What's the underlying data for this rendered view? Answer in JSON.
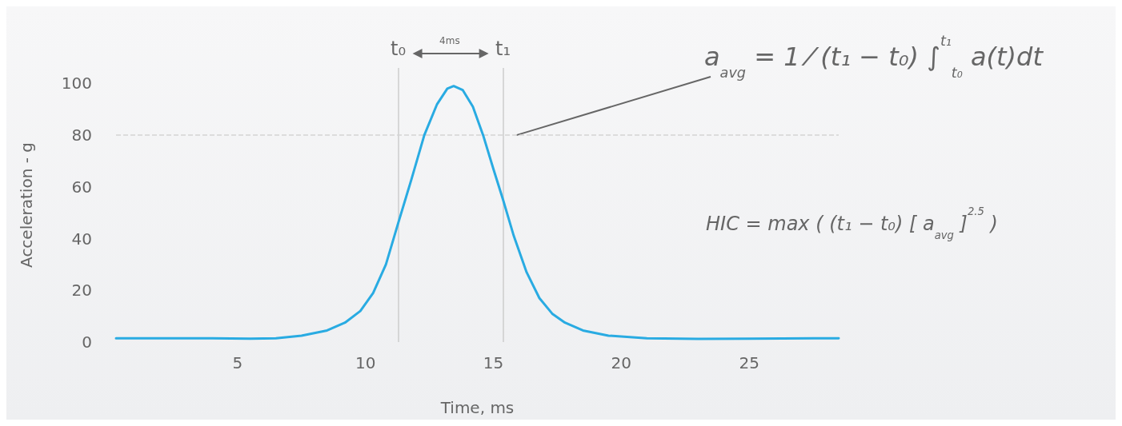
{
  "chart_data": {
    "type": "line",
    "xlabel": "Time, ms",
    "ylabel": "Acceleration - g",
    "xlim": [
      0.25,
      28.5
    ],
    "xticks": [
      5,
      10,
      15,
      20,
      25
    ],
    "ylim": [
      0,
      106
    ],
    "yticks": [
      0,
      20,
      40,
      60,
      80,
      100
    ],
    "series": [
      {
        "color": "#29abe2",
        "x": [
          0.25,
          2,
          4,
          5.5,
          6.5,
          7.5,
          8.5,
          9.2,
          9.8,
          10.3,
          10.8,
          11.28,
          11.8,
          12.3,
          12.8,
          13.2,
          13.45,
          13.8,
          14.2,
          14.6,
          15,
          15.38,
          15.8,
          16.3,
          16.8,
          17.3,
          17.8,
          18.5,
          19.5,
          21,
          23,
          25,
          28.5
        ],
        "values": [
          1.5,
          1.5,
          1.5,
          1.3,
          1.5,
          2.5,
          4.5,
          7.5,
          12,
          19,
          30,
          46,
          63,
          80,
          92,
          98,
          99,
          97.5,
          91,
          80,
          67,
          55,
          41,
          27,
          17,
          11,
          7.5,
          4.5,
          2.5,
          1.5,
          1.2,
          1.3,
          1.5
        ]
      }
    ],
    "marker": "none",
    "line_style": "solid",
    "ref_lines": [
      {
        "axis": "x",
        "value": 11.28,
        "label": "t₀",
        "color": "#cccccc",
        "line_style": "solid"
      },
      {
        "axis": "x",
        "value": 15.38,
        "label": "t₁",
        "color": "#cccccc",
        "line_style": "solid"
      },
      {
        "axis": "y",
        "value": 80,
        "color": "#d4d4d4",
        "line_style": "dashed"
      }
    ],
    "annotations": [
      "4ms",
      {
        "text": "a$_{avg}$ = 1 ⁄ (t₁ − t₀) ∫$^{t₁}$$_{t₀}$ a(t)dt",
        "x": 15.9,
        "y": 80
      },
      "HIC = max ( (t₁ − t₀) [ a$_{avg}$ ]$^{2.5}$ )"
    ]
  }
}
